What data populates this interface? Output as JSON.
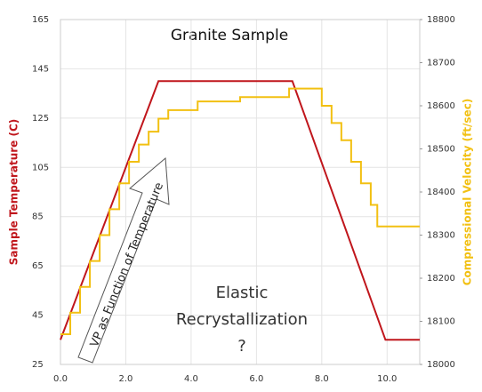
{
  "chart_data": {
    "type": "line",
    "title": "Granite Sample",
    "ylabel": "Sample Temperature (C)",
    "y2label": "Compressional Velocity (ft/sec)",
    "annotations": [
      "VP as Function of Temperature",
      "Elastic",
      "Recrystallization",
      "?"
    ],
    "xlim": [
      0,
      11
    ],
    "xticks": [
      {
        "value": 0,
        "label": "0.0"
      },
      {
        "value": 2,
        "label": "2.0"
      },
      {
        "value": 4,
        "label": "4.0"
      },
      {
        "value": 6,
        "label": "6.0"
      },
      {
        "value": 8,
        "label": "8.0"
      },
      {
        "value": 10,
        "label": "10.0"
      }
    ],
    "ylim": [
      25,
      165
    ],
    "yticks": [
      25,
      45,
      65,
      85,
      105,
      125,
      145,
      165
    ],
    "y2lim": [
      18000,
      18800
    ],
    "y2ticks": [
      18000,
      18100,
      18200,
      18300,
      18400,
      18500,
      18600,
      18700,
      18800
    ],
    "grid": true,
    "series": [
      {
        "color": "#c0161c",
        "x": [
          0,
          3.0,
          7.1,
          9.95,
          11
        ],
        "values": [
          35,
          140,
          140,
          35,
          35
        ]
      },
      {
        "color": "#f2c012",
        "axis": "y2",
        "x": [
          0,
          0.3,
          0.3,
          0.6,
          0.6,
          0.9,
          0.9,
          1.2,
          1.2,
          1.5,
          1.5,
          1.8,
          1.8,
          2.1,
          2.1,
          2.4,
          2.4,
          2.7,
          2.7,
          3.0,
          3.0,
          3.3,
          3.3,
          4.2,
          4.2,
          5.5,
          5.5,
          7.0,
          7.0,
          8.0,
          8.0,
          8.3,
          8.3,
          8.6,
          8.6,
          8.9,
          8.9,
          9.2,
          9.2,
          9.5,
          9.5,
          9.7,
          9.7,
          11
        ],
        "values": [
          18070,
          18070,
          18120,
          18120,
          18180,
          18180,
          18240,
          18240,
          18300,
          18300,
          18360,
          18360,
          18420,
          18420,
          18470,
          18470,
          18510,
          18510,
          18540,
          18540,
          18570,
          18570,
          18590,
          18590,
          18610,
          18610,
          18620,
          18620,
          18640,
          18640,
          18600,
          18600,
          18560,
          18560,
          18520,
          18520,
          18470,
          18470,
          18420,
          18420,
          18370,
          18370,
          18320,
          18320
        ]
      }
    ]
  }
}
